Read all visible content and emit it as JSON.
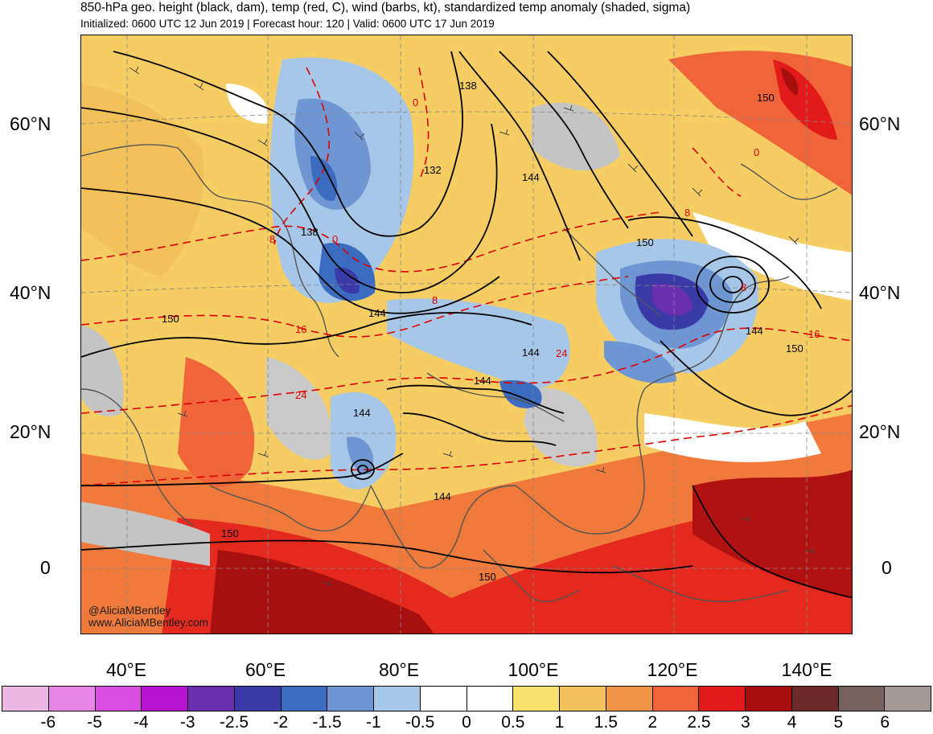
{
  "header": {
    "title": "850-hPa geo. height (black, dam), temp (red, C), wind (barbs, kt), standardized temp anomaly (shaded, sigma)",
    "subtitle": "Initialized: 0600 UTC 12 Jun 2019 | Forecast hour: 120 | Valid: 0600 UTC 17 Jun 2019"
  },
  "map": {
    "lat_labels": [
      "60°N",
      "40°N",
      "20°N",
      "0"
    ],
    "lon_labels": [
      "40°E",
      "60°E",
      "80°E",
      "100°E",
      "120°E",
      "140°E"
    ],
    "height_contour_labels": [
      "138",
      "132",
      "144",
      "138",
      "144",
      "150",
      "144",
      "150",
      "150",
      "144",
      "144",
      "144",
      "150",
      "150",
      "150",
      "144"
    ],
    "temp_contour_labels": [
      "0",
      "8",
      "0",
      "8",
      "16",
      "24",
      "24",
      "16",
      "8",
      "8",
      "0"
    ],
    "credit_handle": "@AliciaMBentley",
    "credit_site": "www.AliciaMBentley.com"
  },
  "colorbar": {
    "labels": [
      "-6",
      "-5",
      "-4",
      "-3",
      "-2.5",
      "-2",
      "-1.5",
      "-1",
      "-0.5",
      "0",
      "0.5",
      "1",
      "1.5",
      "2",
      "2.5",
      "3",
      "4",
      "5",
      "6"
    ],
    "colors": [
      "#ebb8e6",
      "#e884e4",
      "#d94de0",
      "#b414d2",
      "#6a2eb0",
      "#3a3aa8",
      "#3b6cc0",
      "#6e96d2",
      "#a7c7e8",
      "#ffffff",
      "#ffffff",
      "#f8e16c",
      "#f3c15a",
      "#f09446",
      "#ef6438",
      "#e21a1a",
      "#a80e0e",
      "#6e2a28",
      "#75625e",
      "#a49896"
    ]
  },
  "colors": {
    "height_contour": "#000000",
    "temp_contour": "#e00000",
    "land_outline": "#555555"
  }
}
